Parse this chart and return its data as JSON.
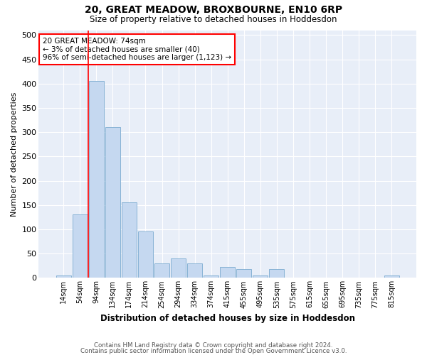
{
  "title": "20, GREAT MEADOW, BROXBOURNE, EN10 6RP",
  "subtitle": "Size of property relative to detached houses in Hoddesdon",
  "xlabel": "Distribution of detached houses by size in Hoddesdon",
  "ylabel": "Number of detached properties",
  "bar_color": "#c5d8f0",
  "bar_edge_color": "#7aaad0",
  "background_color": "#e8eef8",
  "grid_color": "#ffffff",
  "categories": [
    "14sqm",
    "54sqm",
    "94sqm",
    "134sqm",
    "174sqm",
    "214sqm",
    "254sqm",
    "294sqm",
    "334sqm",
    "374sqm",
    "415sqm",
    "455sqm",
    "495sqm",
    "535sqm",
    "575sqm",
    "615sqm",
    "655sqm",
    "695sqm",
    "735sqm",
    "775sqm",
    "815sqm"
  ],
  "values": [
    5,
    130,
    405,
    310,
    155,
    95,
    30,
    40,
    30,
    5,
    22,
    18,
    5,
    18,
    1,
    1,
    1,
    1,
    1,
    1,
    5
  ],
  "annotation_text": "20 GREAT MEADOW: 74sqm\n← 3% of detached houses are smaller (40)\n96% of semi-detached houses are larger (1,123) →",
  "vline_x_index": 2,
  "ylim": [
    0,
    510
  ],
  "yticks": [
    0,
    50,
    100,
    150,
    200,
    250,
    300,
    350,
    400,
    450,
    500
  ],
  "footer_line1": "Contains HM Land Registry data © Crown copyright and database right 2024.",
  "footer_line2": "Contains public sector information licensed under the Open Government Licence v3.0."
}
